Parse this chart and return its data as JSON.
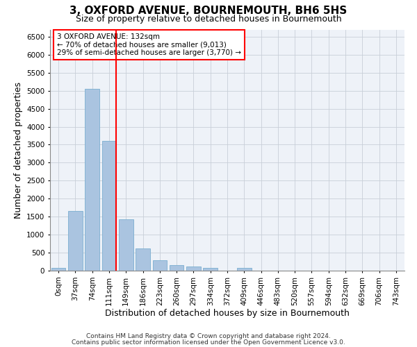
{
  "title": "3, OXFORD AVENUE, BOURNEMOUTH, BH6 5HS",
  "subtitle": "Size of property relative to detached houses in Bournemouth",
  "xlabel": "Distribution of detached houses by size in Bournemouth",
  "ylabel": "Number of detached properties",
  "footnote1": "Contains HM Land Registry data © Crown copyright and database right 2024.",
  "footnote2": "Contains public sector information licensed under the Open Government Licence v3.0.",
  "categories": [
    "0sqm",
    "37sqm",
    "74sqm",
    "111sqm",
    "149sqm",
    "186sqm",
    "223sqm",
    "260sqm",
    "297sqm",
    "334sqm",
    "372sqm",
    "409sqm",
    "446sqm",
    "483sqm",
    "520sqm",
    "557sqm",
    "594sqm",
    "632sqm",
    "669sqm",
    "706sqm",
    "743sqm"
  ],
  "values": [
    75,
    1650,
    5050,
    3600,
    1420,
    620,
    290,
    145,
    110,
    80,
    0,
    75,
    0,
    0,
    0,
    0,
    0,
    0,
    0,
    0,
    0
  ],
  "bar_color": "#aac4e0",
  "bar_edge_color": "#7aaed0",
  "vline_color": "red",
  "vline_x_index": 3,
  "annotation_text": "3 OXFORD AVENUE: 132sqm\n← 70% of detached houses are smaller (9,013)\n29% of semi-detached houses are larger (3,770) →",
  "annotation_box_color": "red",
  "annotation_text_color": "black",
  "annotation_bg": "white",
  "ylim": [
    0,
    6700
  ],
  "yticks": [
    0,
    500,
    1000,
    1500,
    2000,
    2500,
    3000,
    3500,
    4000,
    4500,
    5000,
    5500,
    6000,
    6500
  ],
  "grid_color": "#c8cfd8",
  "bg_color": "#eef2f8",
  "title_fontsize": 11,
  "subtitle_fontsize": 9,
  "axis_label_fontsize": 9,
  "tick_fontsize": 7.5,
  "footnote_fontsize": 6.5
}
